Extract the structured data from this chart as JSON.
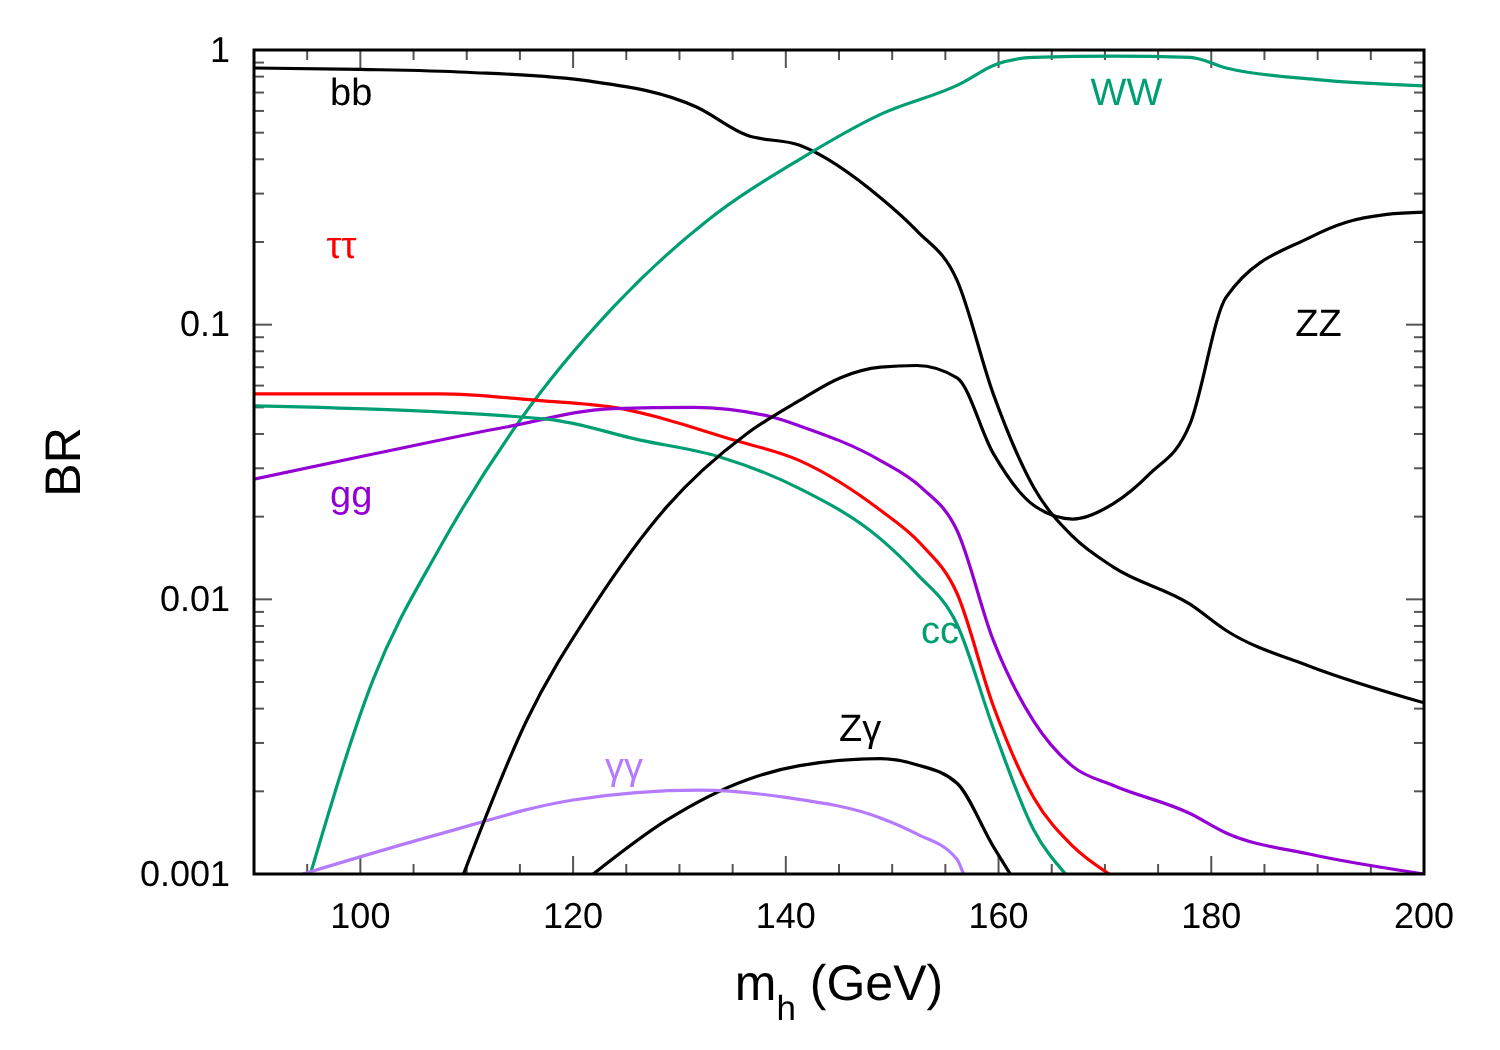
{
  "chart_data": {
    "type": "line",
    "xlabel": "m$_{h}$ (GeV)",
    "ylabel": "BR",
    "log": "y",
    "grid": false,
    "legend": false,
    "marker": "none",
    "line_style": "solid",
    "xlim": [
      90,
      200
    ],
    "ylim": [
      0.001,
      1
    ],
    "xticks": [
      {
        "value": 90,
        "label": null
      },
      {
        "value": 95,
        "label": null
      },
      100,
      {
        "value": 105,
        "label": null
      },
      {
        "value": 110,
        "label": null
      },
      {
        "value": 115,
        "label": null
      },
      120,
      {
        "value": 125,
        "label": null
      },
      {
        "value": 130,
        "label": null
      },
      {
        "value": 135,
        "label": null
      },
      140,
      {
        "value": 145,
        "label": null
      },
      {
        "value": 150,
        "label": null
      },
      {
        "value": 155,
        "label": null
      },
      160,
      {
        "value": 165,
        "label": null
      },
      {
        "value": 170,
        "label": null
      },
      {
        "value": 175,
        "label": null
      },
      180,
      {
        "value": 185,
        "label": null
      },
      {
        "value": 190,
        "label": null
      },
      {
        "value": 195,
        "label": null
      },
      200
    ],
    "yticks": [
      0.001,
      {
        "value": 0.002,
        "label": null
      },
      {
        "value": 0.003,
        "label": null
      },
      {
        "value": 0.004,
        "label": null
      },
      {
        "value": 0.005,
        "label": null
      },
      {
        "value": 0.006,
        "label": null
      },
      {
        "value": 0.007,
        "label": null
      },
      {
        "value": 0.008,
        "label": null
      },
      {
        "value": 0.009,
        "label": null
      },
      0.01,
      {
        "value": 0.02,
        "label": null
      },
      {
        "value": 0.03,
        "label": null
      },
      {
        "value": 0.04,
        "label": null
      },
      {
        "value": 0.05,
        "label": null
      },
      {
        "value": 0.06,
        "label": null
      },
      {
        "value": 0.07,
        "label": null
      },
      {
        "value": 0.08,
        "label": null
      },
      {
        "value": 0.09,
        "label": null
      },
      0.1,
      {
        "value": 0.2,
        "label": null
      },
      {
        "value": 0.3,
        "label": null
      },
      {
        "value": 0.4,
        "label": null
      },
      {
        "value": 0.5,
        "label": null
      },
      {
        "value": 0.6,
        "label": null
      },
      {
        "value": 0.7,
        "label": null
      },
      {
        "value": 0.8,
        "label": null
      },
      {
        "value": 0.9,
        "label": null
      },
      1
    ],
    "series": [
      {
        "name": "bb",
        "color": "#000000",
        "x": [
          90,
          100,
          110,
          121.6,
          131.6,
          136.3,
          141.3,
          148.9,
          152.3,
          156.1,
          159.5,
          163.3,
          167,
          170.8,
          178,
          181.4,
          189.3,
          200
        ],
        "values": [
          0.86,
          0.85,
          0.83,
          0.77,
          0.62,
          0.49,
          0.45,
          0.29,
          0.22,
          0.145,
          0.056,
          0.0256,
          0.0169,
          0.0131,
          0.0096,
          0.0077,
          0.0057,
          0.0042
        ]
      },
      {
        "name": "WW",
        "color": "#009e73",
        "x": [
          95.3,
          101.2,
          107.5,
          115,
          123.8,
          132.6,
          141.3,
          148.9,
          156.3,
          159.8,
          163.3,
          170.8,
          178,
          181.4,
          189.9,
          200
        ],
        "values": [
          0.001,
          0.0051,
          0.0155,
          0.0448,
          0.116,
          0.239,
          0.4,
          0.583,
          0.75,
          0.887,
          0.94,
          0.95,
          0.94,
          0.86,
          0.78,
          0.74
        ]
      },
      {
        "name": "ττ",
        "color": "#ff0000",
        "x": [
          90,
          107.5,
          116.9,
          123.8,
          135.1,
          141.3,
          148.9,
          152.7,
          156.1,
          159.5,
          163.3,
          167,
          170.4
        ],
        "values": [
          0.056,
          0.056,
          0.0529,
          0.05,
          0.038,
          0.032,
          0.0211,
          0.0159,
          0.0105,
          0.0041,
          0.0019,
          0.00126,
          0.001
        ]
      },
      {
        "name": "gg",
        "color": "#9400d3",
        "x": [
          90,
          101.2,
          113.7,
          123.8,
          131.3,
          138.8,
          141.3,
          148.9,
          152.7,
          156.1,
          159.5,
          163.3,
          167,
          170.8,
          178,
          181.4,
          189.3,
          200
        ],
        "values": [
          0.0274,
          0.0338,
          0.0424,
          0.0495,
          0.05,
          0.046,
          0.0428,
          0.032,
          0.0256,
          0.0178,
          0.0071,
          0.0036,
          0.00246,
          0.0021,
          0.00166,
          0.00141,
          0.00118,
          0.001
        ]
      },
      {
        "name": "cc",
        "color": "#009e73",
        "x": [
          90,
          117.5,
          126.3,
          133.8,
          141.3,
          148.9,
          152.3,
          156.1,
          159.5,
          163.3,
          166.3
        ],
        "values": [
          0.0506,
          0.0453,
          0.038,
          0.033,
          0.0253,
          0.0166,
          0.0124,
          0.0081,
          0.0034,
          0.00145,
          0.001
        ]
      },
      {
        "name": "Zγ",
        "color": "#000000",
        "x": [
          121.9,
          128.8,
          136.3,
          141.3,
          148.9,
          152.3,
          156.1,
          159.5,
          161.1
        ],
        "values": [
          0.001,
          0.00157,
          0.0022,
          0.00248,
          0.00263,
          0.0025,
          0.00214,
          0.00126,
          0.001
        ]
      },
      {
        "name": "γγ",
        "color": "#b57bff",
        "x": [
          94.6,
          107.5,
          120,
          131.9,
          140,
          148.9,
          152.3,
          156.1,
          156.7
        ],
        "values": [
          0.001,
          0.0014,
          0.00186,
          0.00202,
          0.0019,
          0.0016,
          0.0014,
          0.00113,
          0.001
        ]
      },
      {
        "name": "ZZ",
        "color": "#000000",
        "x": [
          109.7,
          115.6,
          121.9,
          128.8,
          136.3,
          141.3,
          145.1,
          148.9,
          152.3,
          156.1,
          159.5,
          163.3,
          167,
          170.8,
          174.2,
          178,
          181.4,
          189.3,
          192.7,
          196.5,
          200
        ],
        "values": [
          0.001,
          0.0036,
          0.0094,
          0.0217,
          0.04,
          0.053,
          0.064,
          0.07,
          0.071,
          0.064,
          0.034,
          0.022,
          0.0196,
          0.0223,
          0.0286,
          0.0435,
          0.126,
          0.208,
          0.236,
          0.252,
          0.257
        ]
      }
    ]
  }
}
